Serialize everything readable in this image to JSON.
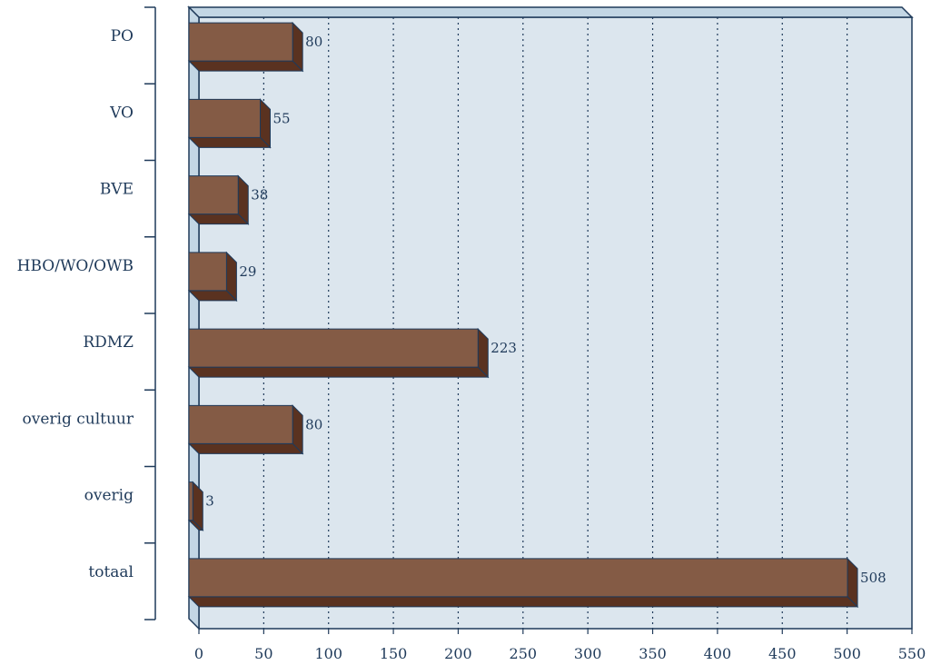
{
  "chart_data": {
    "type": "bar",
    "orientation": "horizontal",
    "title": "",
    "xlabel": "",
    "ylabel": "",
    "categories": [
      "PO",
      "VO",
      "BVE",
      "HBO/WO/OWB",
      "RDMZ",
      "overig cultuur",
      "overig",
      "totaal"
    ],
    "values": [
      80,
      55,
      38,
      29,
      223,
      80,
      3,
      508
    ],
    "xlim": [
      0,
      550
    ],
    "xticks": [
      0,
      50,
      100,
      150,
      200,
      250,
      300,
      350,
      400,
      450,
      500,
      550
    ],
    "grid": "vertical-dotted",
    "legend": "none",
    "colors": {
      "bar_front": "#845b45",
      "bar_side": "#5a3220",
      "bar_edge": "#1f3a5a",
      "plot_bg": "#dce6ee",
      "wall": "#c3d6e4",
      "axis": "#1f3a5a",
      "text": "#1f3a5a"
    }
  }
}
